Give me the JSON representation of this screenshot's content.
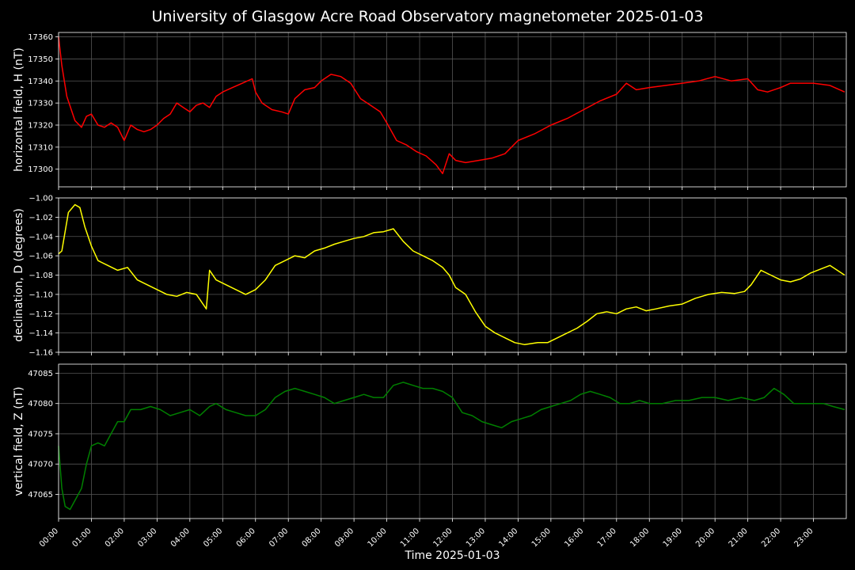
{
  "figure_title": "University of Glasgow Acre Road Observatory magnetometer 2025-01-03",
  "colors": {
    "background": "#000000",
    "grid": "#555555",
    "frame": "#ffffff"
  },
  "chart_data": [
    {
      "type": "line",
      "panel": "horizontal",
      "ylabel": "horizontal field, H (nT)",
      "color": "#ff0000",
      "ylim": [
        17292,
        17362
      ],
      "yticks": [
        17300,
        17310,
        17320,
        17330,
        17340,
        17350,
        17360
      ],
      "ytick_labels": [
        "17300",
        "17310",
        "17320",
        "17330",
        "17340",
        "17350",
        "17360"
      ],
      "x_hours": [
        0,
        0.1,
        0.25,
        0.5,
        0.7,
        0.85,
        1.0,
        1.2,
        1.4,
        1.6,
        1.8,
        2.0,
        2.2,
        2.4,
        2.6,
        2.8,
        3.0,
        3.2,
        3.4,
        3.6,
        3.8,
        4.0,
        4.2,
        4.4,
        4.6,
        4.8,
        5.0,
        5.3,
        5.6,
        5.9,
        6.0,
        6.2,
        6.5,
        6.8,
        7.0,
        7.2,
        7.5,
        7.8,
        8.0,
        8.3,
        8.6,
        8.9,
        9.2,
        9.5,
        9.8,
        10.0,
        10.3,
        10.6,
        10.9,
        11.2,
        11.5,
        11.7,
        11.9,
        12.1,
        12.4,
        12.8,
        13.2,
        13.6,
        14.0,
        14.5,
        15.0,
        15.5,
        16.0,
        16.5,
        17.0,
        17.3,
        17.6,
        18.0,
        18.5,
        19.0,
        19.5,
        20.0,
        20.5,
        21.0,
        21.3,
        21.6,
        22.0,
        22.3,
        22.6,
        23.0,
        23.5,
        23.95
      ],
      "values": [
        17360,
        17347,
        17333,
        17322,
        17319,
        17324,
        17325,
        17320,
        17319,
        17321,
        17319,
        17313,
        17320,
        17318,
        17317,
        17318,
        17320,
        17323,
        17325,
        17330,
        17328,
        17326,
        17329,
        17330,
        17328,
        17333,
        17335,
        17337,
        17339,
        17341,
        17335,
        17330,
        17327,
        17326,
        17325,
        17332,
        17336,
        17337,
        17340,
        17343,
        17342,
        17339,
        17332,
        17329,
        17326,
        17321,
        17313,
        17311,
        17308,
        17306,
        17302,
        17298,
        17307,
        17304,
        17303,
        17304,
        17305,
        17307,
        17313,
        17316,
        17320,
        17323,
        17327,
        17331,
        17334,
        17339,
        17336,
        17337,
        17338,
        17339,
        17340,
        17342,
        17340,
        17341,
        17336,
        17335,
        17337,
        17339,
        17339,
        17339,
        17338,
        17335
      ],
      "grid": true
    },
    {
      "type": "line",
      "panel": "declination",
      "ylabel": "declination, D (degrees)",
      "color": "#ffff00",
      "ylim": [
        -1.16,
        -1.0
      ],
      "yticks": [
        -1.16,
        -1.14,
        -1.12,
        -1.1,
        -1.08,
        -1.06,
        -1.04,
        -1.02,
        -1.0
      ],
      "ytick_labels": [
        "−1.16",
        "−1.14",
        "−1.12",
        "−1.10",
        "−1.08",
        "−1.06",
        "−1.04",
        "−1.02",
        "−1.00"
      ],
      "x_hours": [
        0,
        0.1,
        0.3,
        0.5,
        0.65,
        0.8,
        1.0,
        1.2,
        1.5,
        1.8,
        2.1,
        2.4,
        2.7,
        3.0,
        3.3,
        3.6,
        3.9,
        4.2,
        4.5,
        4.6,
        4.8,
        5.1,
        5.4,
        5.7,
        6.0,
        6.3,
        6.6,
        6.9,
        7.2,
        7.5,
        7.8,
        8.1,
        8.4,
        8.7,
        9.0,
        9.3,
        9.6,
        9.9,
        10.2,
        10.5,
        10.8,
        11.1,
        11.4,
        11.7,
        11.9,
        12.1,
        12.4,
        12.7,
        13.0,
        13.3,
        13.6,
        13.9,
        14.2,
        14.6,
        14.9,
        15.2,
        15.5,
        15.8,
        16.1,
        16.4,
        16.7,
        17.0,
        17.3,
        17.6,
        17.9,
        18.2,
        18.6,
        19.0,
        19.4,
        19.8,
        20.2,
        20.6,
        20.9,
        21.1,
        21.4,
        21.7,
        22.0,
        22.3,
        22.6,
        22.9,
        23.2,
        23.5,
        23.95
      ],
      "values": [
        -1.058,
        -1.055,
        -1.015,
        -1.007,
        -1.01,
        -1.03,
        -1.05,
        -1.065,
        -1.07,
        -1.075,
        -1.072,
        -1.085,
        -1.09,
        -1.095,
        -1.1,
        -1.102,
        -1.098,
        -1.1,
        -1.115,
        -1.075,
        -1.085,
        -1.09,
        -1.095,
        -1.1,
        -1.095,
        -1.085,
        -1.07,
        -1.065,
        -1.06,
        -1.062,
        -1.055,
        -1.052,
        -1.048,
        -1.045,
        -1.042,
        -1.04,
        -1.036,
        -1.035,
        -1.032,
        -1.045,
        -1.055,
        -1.06,
        -1.065,
        -1.072,
        -1.08,
        -1.093,
        -1.1,
        -1.118,
        -1.133,
        -1.14,
        -1.145,
        -1.15,
        -1.152,
        -1.15,
        -1.15,
        -1.145,
        -1.14,
        -1.135,
        -1.128,
        -1.12,
        -1.118,
        -1.12,
        -1.115,
        -1.113,
        -1.117,
        -1.115,
        -1.112,
        -1.11,
        -1.104,
        -1.1,
        -1.098,
        -1.099,
        -1.097,
        -1.09,
        -1.075,
        -1.08,
        -1.085,
        -1.087,
        -1.084,
        -1.078,
        -1.074,
        -1.07,
        -1.08
      ],
      "grid": true
    },
    {
      "type": "line",
      "panel": "vertical",
      "ylabel": "vertical field, Z (nT)",
      "color": "#008000",
      "ylim": [
        47061,
        47086.5
      ],
      "yticks": [
        47065,
        47070,
        47075,
        47080,
        47085
      ],
      "ytick_labels": [
        "47065",
        "47070",
        "47075",
        "47080",
        "47085"
      ],
      "x_hours": [
        0,
        0.1,
        0.2,
        0.35,
        0.5,
        0.7,
        0.85,
        1.0,
        1.2,
        1.4,
        1.6,
        1.8,
        2.0,
        2.2,
        2.5,
        2.8,
        3.1,
        3.4,
        3.7,
        4.0,
        4.3,
        4.6,
        4.8,
        5.1,
        5.4,
        5.7,
        6.0,
        6.3,
        6.6,
        6.9,
        7.2,
        7.5,
        7.8,
        8.1,
        8.4,
        8.7,
        9.0,
        9.3,
        9.6,
        9.9,
        10.2,
        10.5,
        10.8,
        11.1,
        11.4,
        11.7,
        12.0,
        12.3,
        12.6,
        12.9,
        13.2,
        13.5,
        13.8,
        14.1,
        14.4,
        14.7,
        15.0,
        15.3,
        15.6,
        15.9,
        16.2,
        16.5,
        16.8,
        17.1,
        17.4,
        17.7,
        18.0,
        18.4,
        18.8,
        19.2,
        19.6,
        20.0,
        20.4,
        20.8,
        21.2,
        21.5,
        21.8,
        22.1,
        22.4,
        22.7,
        23.0,
        23.3,
        23.6,
        23.95
      ],
      "values": [
        47073,
        47066,
        47063,
        47062.5,
        47064,
        47066,
        47070,
        47073,
        47073.5,
        47073,
        47075,
        47077,
        47077,
        47079,
        47079,
        47079.5,
        47079,
        47078,
        47078.5,
        47079,
        47078,
        47079.5,
        47080,
        47079,
        47078.5,
        47078,
        47078,
        47079,
        47081,
        47082,
        47082.5,
        47082,
        47081.5,
        47081,
        47080,
        47080.5,
        47081,
        47081.5,
        47081,
        47081,
        47083,
        47083.5,
        47083,
        47082.5,
        47082.5,
        47082,
        47081,
        47078.5,
        47078,
        47077,
        47076.5,
        47076,
        47077,
        47077.5,
        47078,
        47079,
        47079.5,
        47080,
        47080.5,
        47081.5,
        47082,
        47081.5,
        47081,
        47080,
        47080,
        47080.5,
        47080,
        47080,
        47080.5,
        47080.5,
        47081,
        47081,
        47080.5,
        47081,
        47080.5,
        47081,
        47082.5,
        47081.5,
        47080,
        47080,
        47080,
        47080,
        47079.5,
        47079
      ]
    }
  ],
  "shared_x": {
    "xlabel": "Time 2025-01-03",
    "xlim": [
      0,
      24
    ],
    "ticks": [
      0,
      1,
      2,
      3,
      4,
      5,
      6,
      7,
      8,
      9,
      10,
      11,
      12,
      13,
      14,
      15,
      16,
      17,
      18,
      19,
      20,
      21,
      22,
      23
    ],
    "tick_labels": [
      "00:00",
      "01:00",
      "02:00",
      "03:00",
      "04:00",
      "05:00",
      "06:00",
      "07:00",
      "08:00",
      "09:00",
      "10:00",
      "11:00",
      "12:00",
      "13:00",
      "14:00",
      "15:00",
      "16:00",
      "17:00",
      "18:00",
      "19:00",
      "20:00",
      "21:00",
      "22:00",
      "23:00"
    ]
  }
}
